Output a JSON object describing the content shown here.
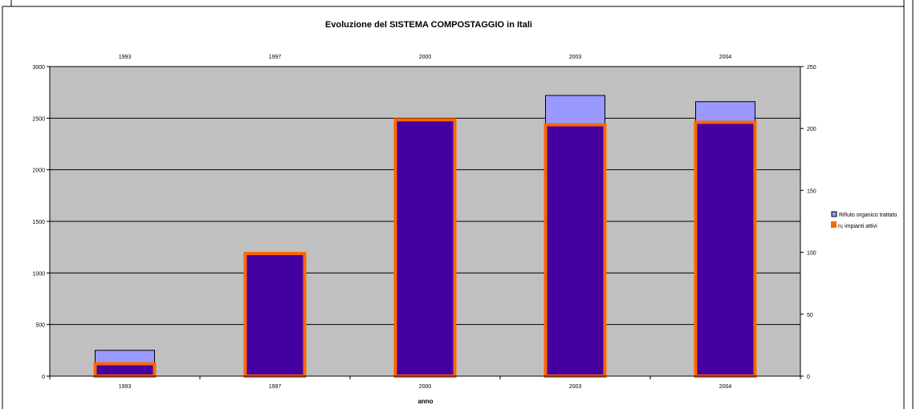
{
  "chart_data": {
    "type": "bar",
    "title": "Evoluzione del SISTEMA COMPOSTAGGIO in Itali",
    "xlabel": "anno",
    "ylabel": "",
    "y2label": "",
    "categories": [
      "1993",
      "1997",
      "2000",
      "2003",
      "2004"
    ],
    "series": [
      {
        "name": "Rifiuto organico trattato",
        "axis": "left",
        "values": [
          250,
          1190,
          2480,
          2720,
          2660
        ],
        "fill": "#9999ff",
        "stroke": "#000000"
      },
      {
        "name": "n¡ impianti attivi",
        "axis": "right",
        "values": [
          10,
          99,
          207,
          203,
          205
        ],
        "fill": "#4400a0",
        "stroke": "#ff6600"
      }
    ],
    "ylim": [
      0,
      3000
    ],
    "yticks": [
      0,
      500,
      1000,
      1500,
      2000,
      2500,
      3000
    ],
    "y2lim": [
      0,
      250
    ],
    "y2ticks": [
      0,
      50,
      100,
      150,
      200,
      250
    ],
    "grid": true,
    "plot_background": "#c0c0c0",
    "legend_position": "right"
  }
}
